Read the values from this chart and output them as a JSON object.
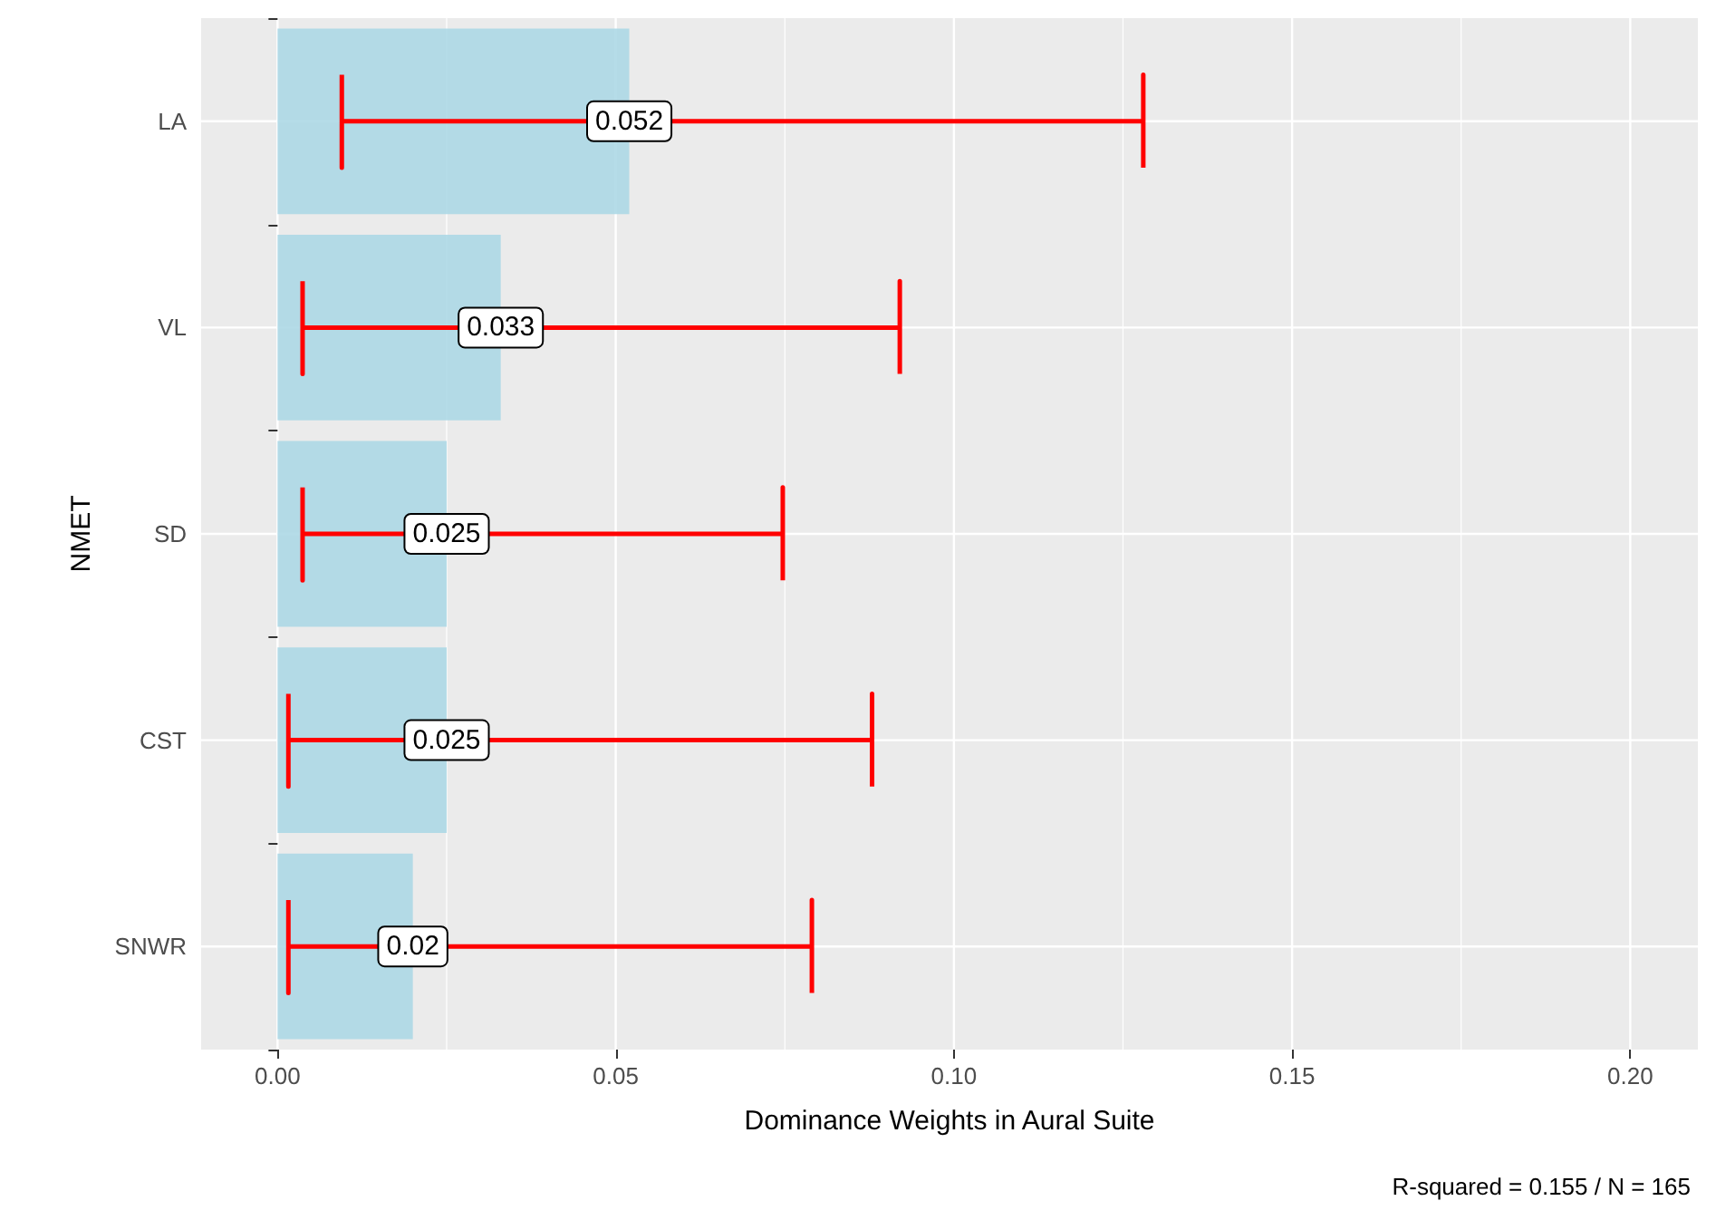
{
  "chart_data": {
    "type": "bar",
    "orientation": "horizontal",
    "xlabel": "Dominance Weights in Aural Suite",
    "ylabel": "NMET",
    "categories": [
      "LA",
      "VL",
      "SD",
      "CST",
      "SNWR"
    ],
    "values": [
      0.052,
      0.033,
      0.025,
      0.025,
      0.02
    ],
    "color": "#add8e6",
    "errors": [
      [
        0.0095,
        0.128
      ],
      [
        0.0037,
        0.092
      ],
      [
        0.0037,
        0.0747
      ],
      [
        0.0016,
        0.0879
      ],
      [
        0.0016,
        0.079
      ]
    ],
    "data_labels": true,
    "xlim": [
      -0.0113,
      0.21
    ],
    "xticks": [
      {
        "value": 0,
        "label": "0.00"
      },
      {
        "value": 0.05,
        "label": "0.05"
      },
      {
        "value": 0.1,
        "label": "0.10"
      },
      {
        "value": 0.15,
        "label": "0.15"
      },
      {
        "value": 0.2,
        "label": "0.20"
      }
    ],
    "grid": true,
    "annotations": [
      "R-squared = 0.155 / N = 165"
    ]
  }
}
